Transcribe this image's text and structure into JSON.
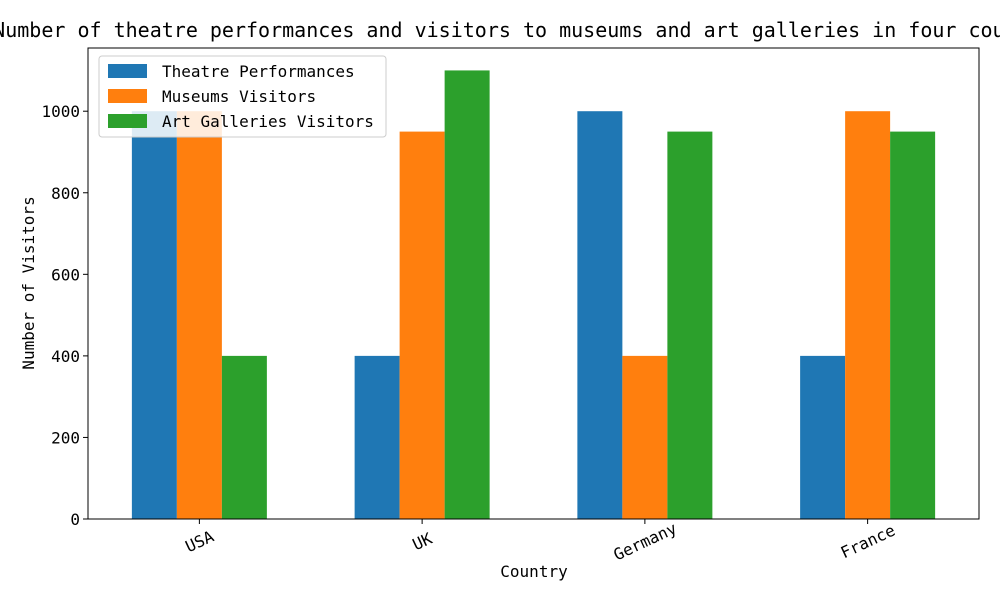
{
  "chart_data": {
    "type": "bar",
    "title": "Number of theatre performances and visitors to museums and art galleries in four countries",
    "xlabel": "Country",
    "ylabel": "Number of Visitors",
    "categories": [
      "USA",
      "UK",
      "Germany",
      "France"
    ],
    "series": [
      {
        "name": "Theatre Performances",
        "color": "#1f77b4",
        "values": [
          1000,
          400,
          1000,
          400
        ]
      },
      {
        "name": "Museums Visitors",
        "color": "#ff7f0e",
        "values": [
          1000,
          950,
          400,
          1000
        ]
      },
      {
        "name": "Art Galleries Visitors",
        "color": "#2ca02c",
        "values": [
          400,
          1100,
          950,
          950
        ]
      }
    ],
    "ylim": [
      0,
      1155
    ],
    "yticks": [
      0,
      200,
      400,
      600,
      800,
      1000
    ],
    "grid": false,
    "legend_position": "top-left"
  }
}
